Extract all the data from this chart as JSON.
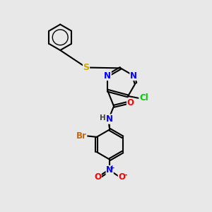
{
  "background_color": "#e8e8e8",
  "atom_colors": {
    "N": "#0000ff",
    "O": "#ff0000",
    "S": "#ccaa00",
    "Cl": "#00cc00",
    "Br": "#cc6600",
    "H": "#444444",
    "C": "#000000"
  },
  "bond_color": "#000000",
  "bond_width": 1.5,
  "font_size": 8.5
}
